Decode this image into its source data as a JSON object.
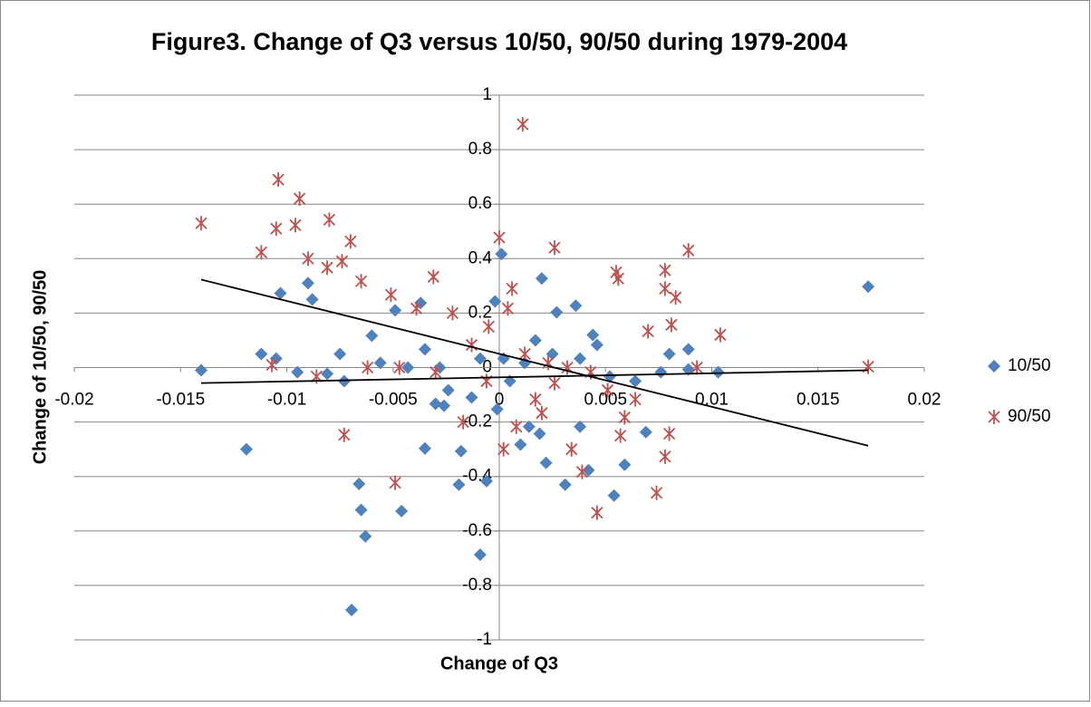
{
  "chart_data": {
    "type": "scatter",
    "title": "Figure3. Change of Q3 versus 10/50, 90/50 during 1979-2004",
    "x_label": "Change of Q3",
    "y_label": "Change of 10/50, 90/50",
    "xlim": [
      -0.02,
      0.02
    ],
    "xticks": [
      -0.02,
      -0.015,
      -0.01,
      -0.005,
      0,
      0.005,
      0.01,
      0.015,
      0.02
    ],
    "ylim": [
      -1,
      1
    ],
    "yticks": [
      -1,
      -0.8,
      -0.6,
      -0.4,
      -0.2,
      0,
      0.2,
      0.4,
      0.6,
      0.8,
      1
    ],
    "grid": true,
    "legend": "right",
    "series": [
      {
        "name": "10/50",
        "color": "#4f81bd",
        "marker": "diamond",
        "x": [
          -0.01403,
          0.01736,
          -0.00695,
          -0.0009,
          -0.0063,
          -0.0065,
          -0.0046,
          -0.0066,
          -0.0119,
          -0.0006,
          -0.0019,
          -0.0035,
          -0.0018,
          -0.0001,
          0.0001,
          -0.0002,
          0.002,
          0.0027,
          0.0036,
          0.0031,
          0.0022,
          0.0042,
          0.0054,
          0.0059,
          0.0069,
          0.0103,
          0.0089,
          0.0089,
          -0.0103,
          -0.0088,
          -0.009,
          -0.0112,
          -0.0105,
          -0.0095,
          -0.0081,
          -0.0075,
          -0.006,
          -0.0049,
          -0.0037,
          -0.0035,
          -0.0028,
          -0.0024,
          -0.003,
          -0.0026,
          -0.0013,
          0.0005,
          0.0012,
          0.0017,
          0.0025,
          0.0038,
          0.0046,
          0.0044,
          0.0052,
          0.0064,
          0.0076,
          0.008,
          -0.0056,
          -0.0073,
          -0.0043,
          -0.0009,
          0.0014,
          0.001,
          0.0019,
          0.0038,
          0.0002
        ],
        "values": [
          -0.01,
          0.297,
          -0.89,
          -0.687,
          -0.62,
          -0.523,
          -0.527,
          -0.427,
          -0.3,
          -0.417,
          -0.43,
          -0.297,
          -0.307,
          -0.153,
          0.417,
          0.243,
          0.327,
          0.203,
          0.227,
          -0.43,
          -0.35,
          -0.377,
          -0.47,
          -0.357,
          -0.237,
          -0.017,
          0.067,
          -0.007,
          0.273,
          0.25,
          0.31,
          0.05,
          0.033,
          -0.017,
          -0.023,
          0.05,
          0.117,
          0.21,
          0.237,
          0.067,
          0,
          -0.083,
          -0.133,
          -0.14,
          -0.11,
          -0.05,
          0.017,
          0.1,
          0.05,
          0.033,
          0.083,
          0.12,
          -0.033,
          -0.05,
          -0.017,
          0.05,
          0.017,
          -0.05,
          0,
          0.033,
          -0.217,
          -0.283,
          -0.243,
          -0.217,
          0.033
        ]
      },
      {
        "name": "90/50",
        "color": "#c0504d",
        "marker": "star",
        "x": [
          -0.01403,
          0.01736,
          0.0011,
          -0.0104,
          -0.0094,
          -0.0105,
          -0.0096,
          -0.0112,
          -0.008,
          -0.007,
          -0.009,
          -0.0081,
          -0.0074,
          -0.0065,
          -0.0051,
          -0.0031,
          0,
          0.0026,
          0.0055,
          0.0056,
          0.0089,
          0.0078,
          0.0078,
          0.0083,
          0.0104,
          0.0081,
          0.007,
          -0.0039,
          -0.0022,
          -0.0005,
          0.0004,
          0.0006,
          -0.0013,
          0.0012,
          0.0023,
          0.0032,
          0.0043,
          -0.0073,
          -0.0049,
          0.0046,
          0.0074,
          0.0078,
          0.008,
          0.0057,
          0.0059,
          0.0039,
          0.0034,
          0.002,
          0.0008,
          0.0002,
          -0.0017,
          -0.003,
          -0.0047,
          -0.0062,
          -0.0086,
          -0.0107,
          0.0017,
          0.0026,
          0.0064,
          0.0051,
          0.0093,
          -0.0006
        ],
        "values": [
          0.53,
          0.003,
          0.893,
          0.69,
          0.62,
          0.51,
          0.523,
          0.423,
          0.543,
          0.463,
          0.4,
          0.367,
          0.39,
          0.317,
          0.267,
          0.333,
          0.477,
          0.44,
          0.35,
          0.327,
          0.43,
          0.357,
          0.29,
          0.257,
          0.12,
          0.157,
          0.133,
          0.217,
          0.2,
          0.15,
          0.217,
          0.29,
          0.083,
          0.05,
          0.017,
          0,
          -0.017,
          -0.247,
          -0.423,
          -0.533,
          -0.46,
          -0.327,
          -0.243,
          -0.25,
          -0.183,
          -0.383,
          -0.3,
          -0.167,
          -0.217,
          -0.3,
          -0.2,
          -0.017,
          0,
          0,
          -0.033,
          0.01,
          -0.117,
          -0.057,
          -0.117,
          -0.083,
          0,
          -0.05
        ]
      }
    ],
    "trendlines": [
      {
        "color": "#000000",
        "x": [
          -0.01403,
          0.01736
        ],
        "values": [
          0.323,
          -0.287
        ]
      },
      {
        "color": "#000000",
        "x": [
          -0.01403,
          0.01736
        ],
        "values": [
          -0.057,
          -0.01
        ]
      }
    ]
  }
}
